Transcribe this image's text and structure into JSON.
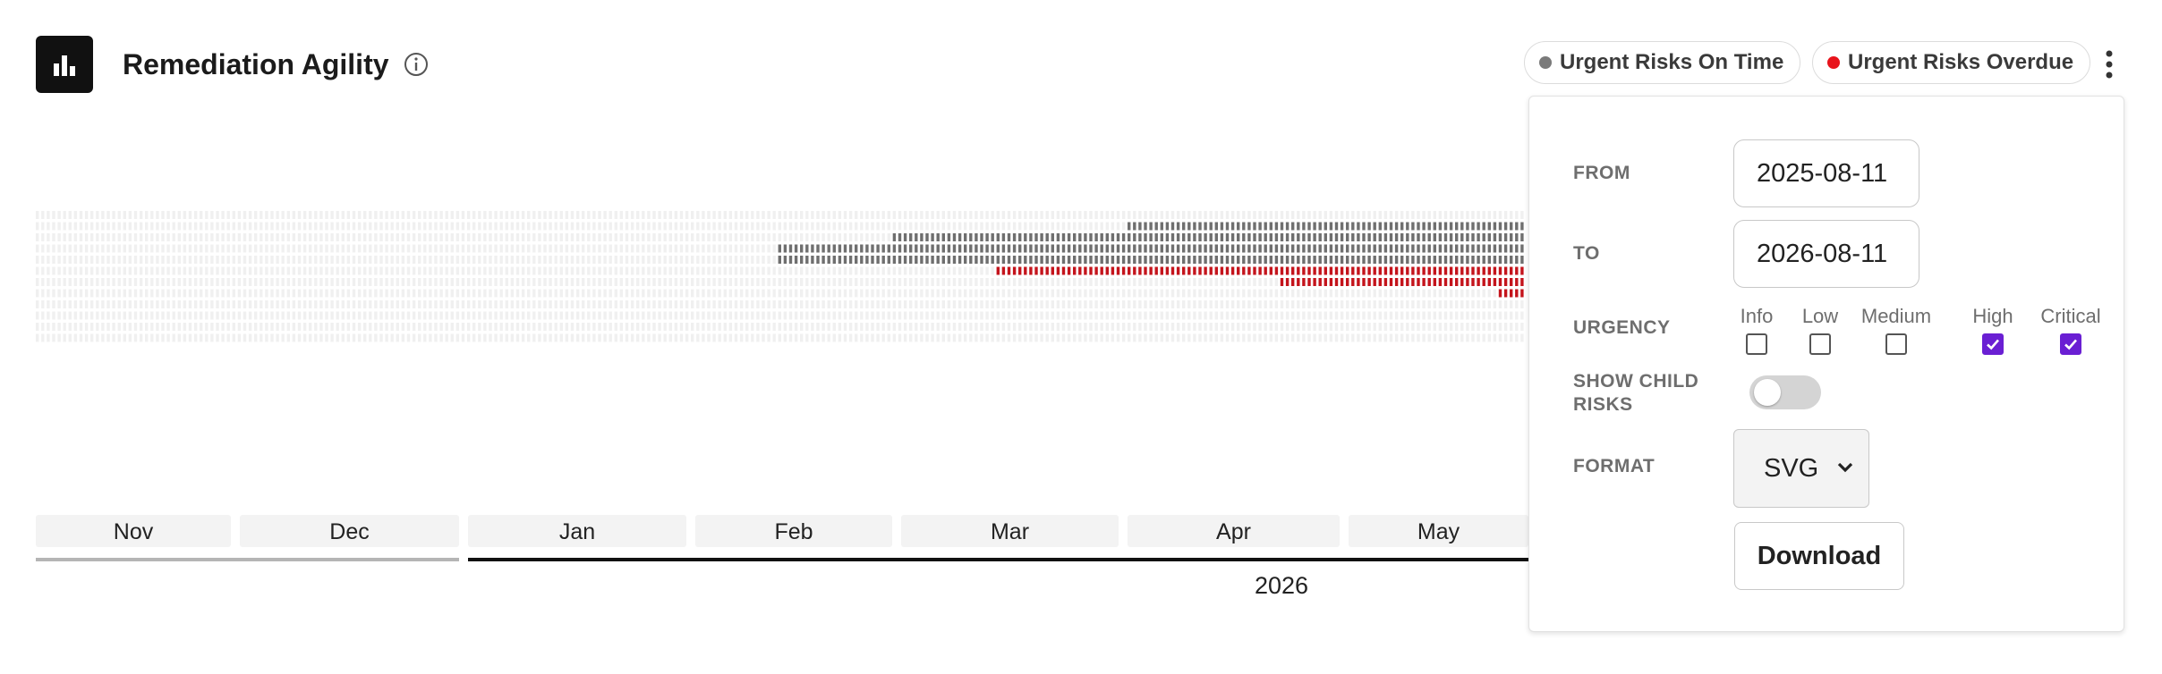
{
  "header": {
    "title": "Remediation Agility",
    "icon": "bar-chart-icon",
    "info_icon": "info-icon",
    "menu_icon": "more-vertical-icon"
  },
  "legend": [
    {
      "label": "Urgent Risks On Time",
      "color": "#7a7a7a"
    },
    {
      "label": "Urgent Risks Overdue",
      "color": "#e8141c"
    }
  ],
  "chart_data": {
    "type": "heatmap",
    "months": [
      "Nov",
      "Dec",
      "Jan",
      "Feb",
      "Mar",
      "Apr",
      "May"
    ],
    "year_label": "2026",
    "series": [
      {
        "name": "Urgent Risks On Time",
        "color": "#6f6f6f"
      },
      {
        "name": "Urgent Risks Overdue",
        "color": "#c4141c"
      }
    ],
    "empty_color": "#f0f0f0"
  },
  "panel": {
    "from_label": "FROM",
    "from_value": "2025-08-11",
    "to_label": "TO",
    "to_value": "2026-08-11",
    "urgency_label": "URGENCY",
    "urgency_options": [
      {
        "label": "Info",
        "checked": false
      },
      {
        "label": "Low",
        "checked": false
      },
      {
        "label": "Medium",
        "checked": false
      },
      {
        "label": "High",
        "checked": true
      },
      {
        "label": "Critical",
        "checked": true
      }
    ],
    "show_child_label_1": "SHOW CHILD",
    "show_child_label_2": "RISKS",
    "show_child_on": false,
    "format_label": "FORMAT",
    "format_value": "SVG",
    "download_label": "Download"
  }
}
